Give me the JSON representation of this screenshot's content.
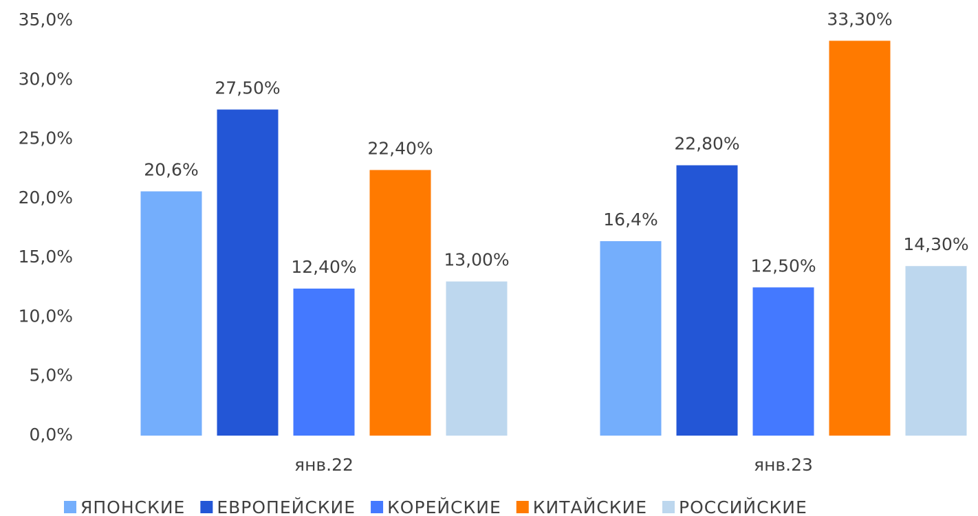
{
  "chart_data": {
    "type": "bar",
    "categories": [
      "янв.22",
      "янв.23"
    ],
    "series": [
      {
        "name": "ЯПОНСКИЕ",
        "color": "#74aefc",
        "values": [
          20.6,
          16.4
        ],
        "value_labels": [
          "20,6%",
          "16,4%"
        ]
      },
      {
        "name": "ЕВРОПЕЙСКИЕ",
        "color": "#2356d6",
        "values": [
          27.5,
          22.8
        ],
        "value_labels": [
          "27,50%",
          "22,80%"
        ]
      },
      {
        "name": "КОРЕЙСКИЕ",
        "color": "#4479ff",
        "values": [
          12.4,
          12.5
        ],
        "value_labels": [
          "12,40%",
          "12,50%"
        ]
      },
      {
        "name": "КИТАЙСКИЕ",
        "color": "#ff7a00",
        "values": [
          22.4,
          33.3
        ],
        "value_labels": [
          "22,40%",
          "33,30%"
        ]
      },
      {
        "name": "РОССИЙСКИЕ",
        "color": "#bdd7ee",
        "values": [
          13.0,
          14.3
        ],
        "value_labels": [
          "13,00%",
          "14,30%"
        ]
      }
    ],
    "ylim": [
      0,
      35
    ],
    "yticks": [
      {
        "value": 0,
        "label": "0,0%"
      },
      {
        "value": 5,
        "label": "5,0%"
      },
      {
        "value": 10,
        "label": "10,0%"
      },
      {
        "value": 15,
        "label": "15,0%"
      },
      {
        "value": 20,
        "label": "20,0%"
      },
      {
        "value": 25,
        "label": "25,0%"
      },
      {
        "value": 30,
        "label": "30,0%"
      },
      {
        "value": 35,
        "label": "35,0%"
      }
    ],
    "grid": false,
    "legend": "bottom"
  }
}
